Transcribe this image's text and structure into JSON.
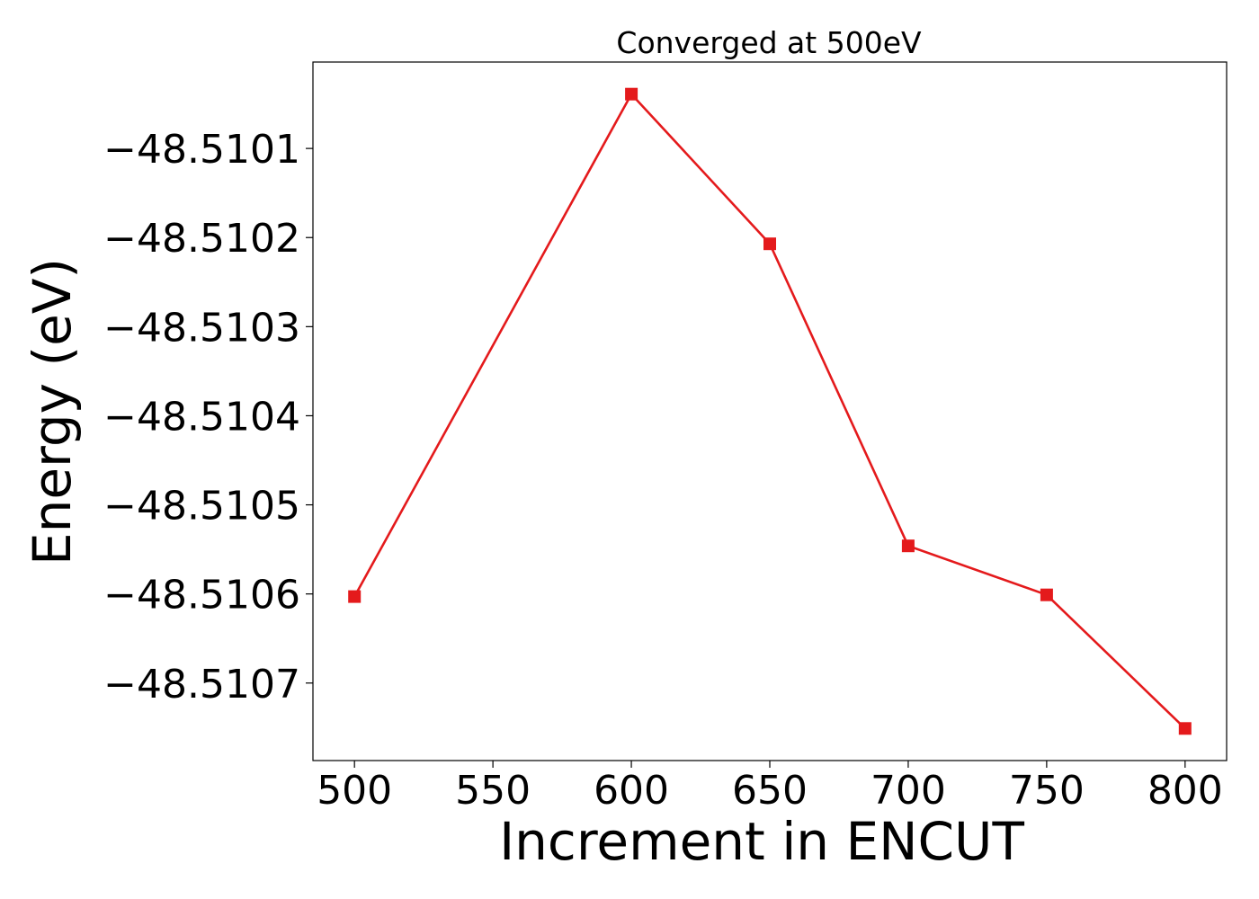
{
  "chart_data": {
    "type": "line",
    "title": "Converged at 500eV",
    "xlabel": "Increment in ENCUT",
    "ylabel": "Energy (eV)",
    "x": [
      500,
      600,
      650,
      700,
      750,
      800
    ],
    "series": [
      {
        "values": [
          -48.510603,
          -48.510039,
          -48.510207,
          -48.510546,
          -48.510601,
          -48.510751
        ],
        "color": "#e41a1c",
        "marker": "square"
      }
    ],
    "xlim": [
      485,
      815
    ],
    "ylim": [
      -48.510787,
      -48.510003
    ],
    "xticks": [
      500,
      550,
      600,
      650,
      700,
      750,
      800
    ],
    "xtick_labels": [
      "500",
      "550",
      "600",
      "650",
      "700",
      "750",
      "800"
    ],
    "yticks": [
      -48.5107,
      -48.5106,
      -48.5105,
      -48.5104,
      -48.5103,
      -48.5102,
      -48.5101
    ],
    "ytick_labels": [
      "−48.5107",
      "−48.5106",
      "−48.5105",
      "−48.5104",
      "−48.5103",
      "−48.5102",
      "−48.5101"
    ],
    "grid": false,
    "legend": "none"
  }
}
